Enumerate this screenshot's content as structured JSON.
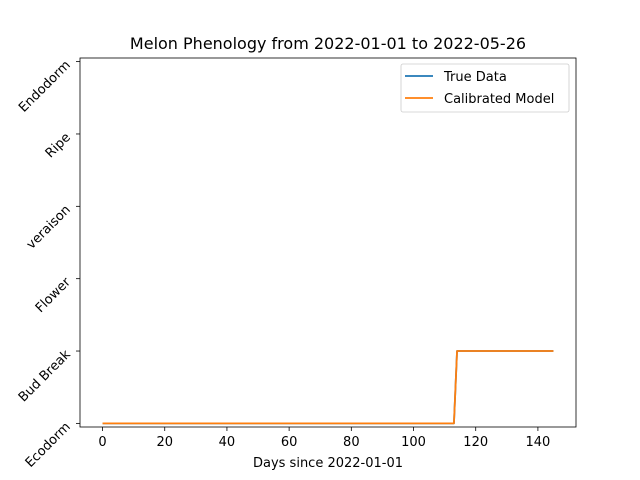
{
  "chart_data": {
    "type": "line",
    "title": "Melon Phenology from 2022-01-01 to 2022-05-26",
    "xlabel": "Days since 2022-01-01",
    "ylabel": "",
    "xlim": [
      -7.25,
      152.25
    ],
    "ylim": [
      -0.05,
      5.05
    ],
    "x_ticks": [
      0,
      20,
      40,
      60,
      80,
      100,
      120,
      140
    ],
    "y_ticks": [
      0,
      1,
      2,
      3,
      4,
      5
    ],
    "y_tick_labels": [
      "Ecodorm",
      "Bud Break",
      "Flower",
      "veraison",
      "Ripe",
      "Endodorm"
    ],
    "grid": false,
    "legend_position": "top-right",
    "series": [
      {
        "name": "True Data",
        "color": "#1f77b4",
        "points": [
          [
            0,
            0
          ],
          [
            113,
            0
          ],
          [
            114,
            1
          ],
          [
            145,
            1
          ]
        ]
      },
      {
        "name": "Calibrated Model",
        "color": "#ff7f0e",
        "points": [
          [
            0,
            0
          ],
          [
            113,
            0
          ],
          [
            114,
            1
          ],
          [
            145,
            1
          ]
        ]
      }
    ]
  }
}
